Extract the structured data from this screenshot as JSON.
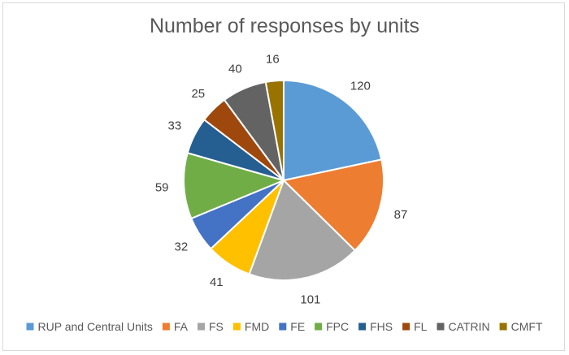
{
  "chart_data": {
    "type": "pie",
    "title": "Number of responses by units",
    "categories": [
      "RUP and Central Units",
      "FA",
      "FS",
      "FMD",
      "FE",
      "FPC",
      "FHS",
      "FL",
      "CATRIN",
      "CMFT"
    ],
    "values": [
      120,
      87,
      101,
      41,
      32,
      59,
      33,
      25,
      40,
      16
    ],
    "colors": [
      "#5B9BD5",
      "#ED7D31",
      "#A5A5A5",
      "#FFC000",
      "#4472C4",
      "#70AD47",
      "#255E91",
      "#9E480E",
      "#636363",
      "#997300"
    ],
    "legend": "bottom",
    "start_angle_deg": 0,
    "direction": "clockwise"
  }
}
